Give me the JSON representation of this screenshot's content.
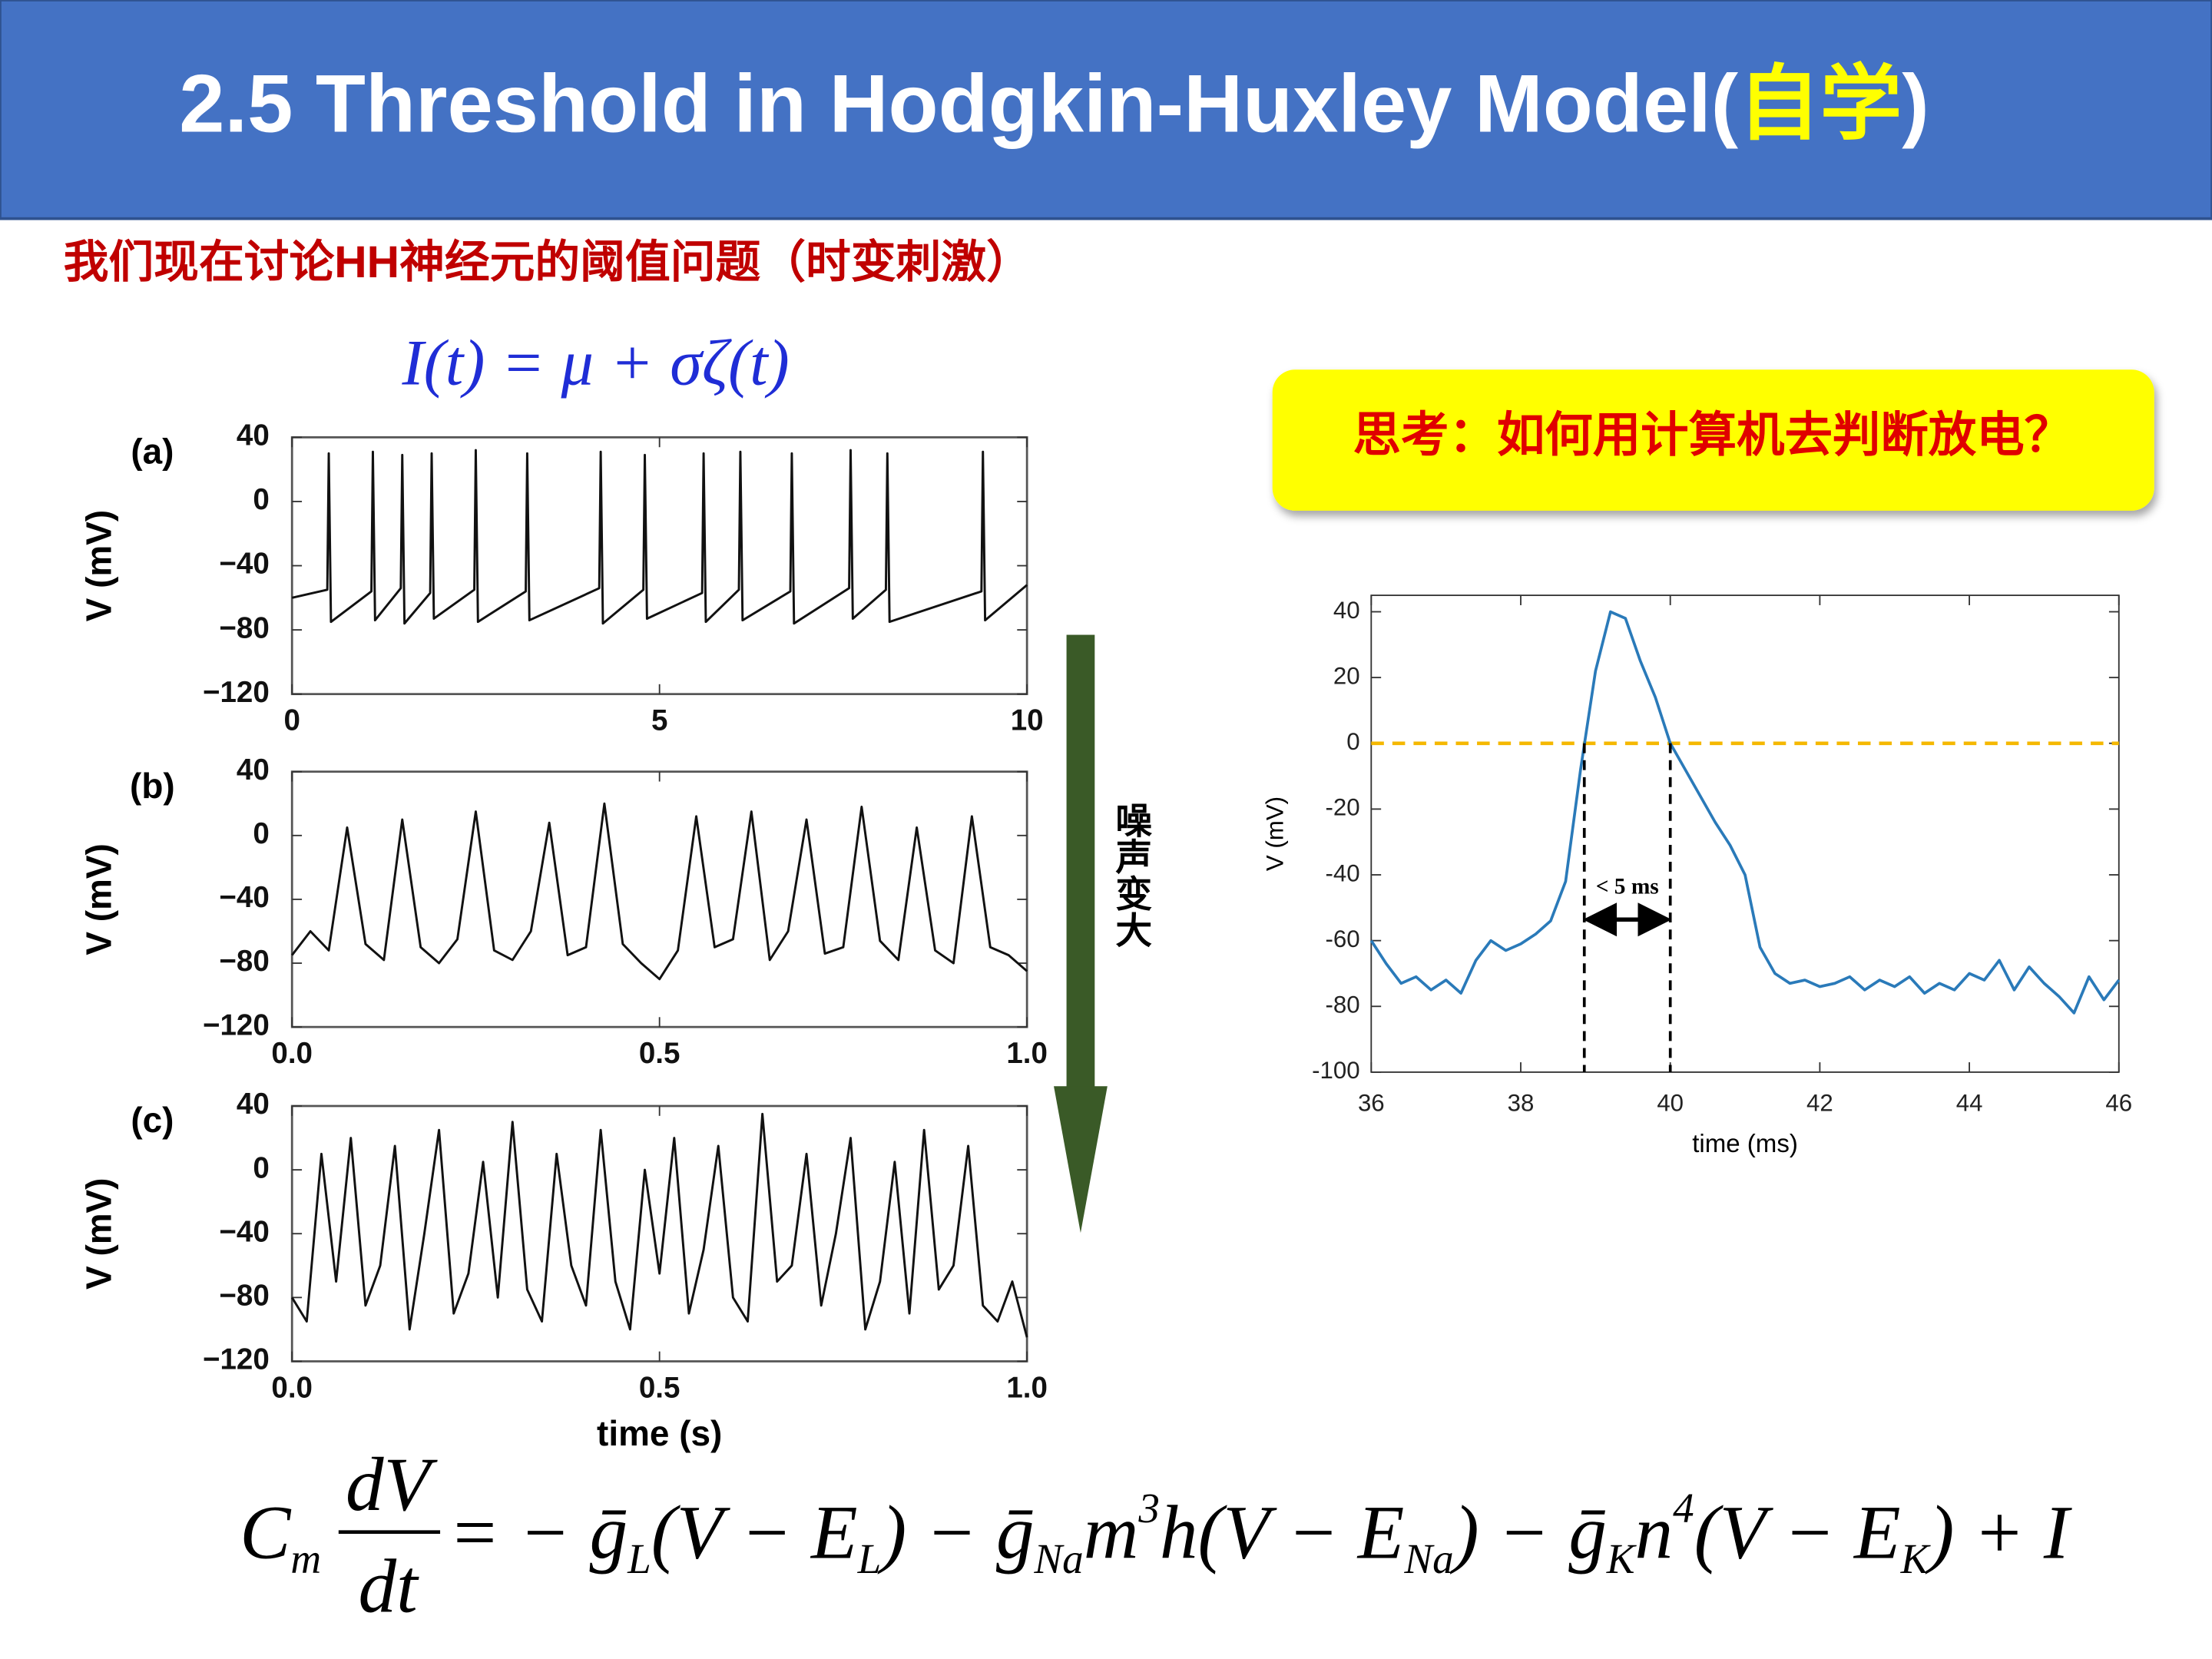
{
  "header": {
    "title": "2.5 Threshold in Hodgkin-Huxley Model(",
    "title_highlight": "自学",
    "title_end": ")"
  },
  "subtitle": "我们现在讨论HH神经元的阈值问题（时变刺激）",
  "input_formula": "I(t) = μ + σζ(t)",
  "callout": "思考：如何用计算机去判断放电？",
  "arrow_label": "噪声变大",
  "equation": {
    "lhs": {
      "text": "C",
      "sub": "m"
    },
    "numerator": "dV",
    "denominator": "dt",
    "rhs": [
      {
        "text": "= − ḡ",
        "sub": "L"
      },
      {
        "text": "(V − E",
        "sub": "L"
      },
      {
        "text": ") − ḡ",
        "sub": "Na"
      },
      {
        "text": "m",
        "sup": "3"
      },
      {
        "text": "h(V − E",
        "sub": "Na"
      },
      {
        "text": ") − ḡ",
        "sub": "K"
      },
      {
        "text": "n",
        "sup": "4"
      },
      {
        "text": "(V − E",
        "sub": "K"
      },
      {
        "text": ") + I"
      }
    ]
  },
  "chart_data": [
    {
      "type": "line",
      "panel_label": "(a)",
      "y_label": "V (mV)",
      "color": "#111111",
      "x": [
        0,
        0.48,
        0.5,
        0.53,
        1.08,
        1.1,
        1.13,
        1.48,
        1.5,
        1.53,
        1.88,
        1.9,
        1.93,
        2.48,
        2.5,
        2.53,
        3.18,
        3.2,
        3.23,
        4.18,
        4.2,
        4.23,
        4.78,
        4.8,
        4.83,
        5.58,
        5.6,
        5.63,
        6.08,
        6.1,
        6.13,
        6.78,
        6.8,
        6.83,
        7.58,
        7.6,
        7.63,
        8.08,
        8.1,
        8.13,
        9.38,
        9.4,
        9.43,
        10
      ],
      "values": [
        -60,
        -55,
        30,
        -75,
        -56,
        31,
        -74,
        -54,
        29,
        -76,
        -57,
        30,
        -73,
        -55,
        32,
        -75,
        -56,
        30,
        -74,
        -54,
        31,
        -76,
        -55,
        29,
        -73,
        -57,
        30,
        -75,
        -55,
        31,
        -74,
        -56,
        30,
        -76,
        -54,
        32,
        -73,
        -55,
        30,
        -75,
        -56,
        31,
        -74,
        -52
      ],
      "xlim": [
        0,
        10
      ],
      "xticks": [
        0,
        5,
        10
      ],
      "ylim": [
        -120,
        40
      ],
      "yticks": [
        40,
        0,
        {
          "value": -40,
          "label": "−40"
        },
        {
          "value": -80,
          "label": "−80"
        },
        {
          "value": -120,
          "label": "−120"
        }
      ]
    },
    {
      "type": "line",
      "panel_label": "(b)",
      "y_label": "V (mV)",
      "color": "#111111",
      "x": [
        0,
        0.025,
        0.05,
        0.075,
        0.1,
        0.125,
        0.15,
        0.175,
        0.2,
        0.225,
        0.25,
        0.275,
        0.3,
        0.325,
        0.35,
        0.375,
        0.4,
        0.425,
        0.45,
        0.475,
        0.5,
        0.525,
        0.55,
        0.575,
        0.6,
        0.625,
        0.65,
        0.675,
        0.7,
        0.725,
        0.75,
        0.775,
        0.8,
        0.825,
        0.85,
        0.875,
        0.9,
        0.925,
        0.95,
        0.975,
        1
      ],
      "values": [
        -75,
        -60,
        -72,
        5,
        -68,
        -78,
        10,
        -70,
        -80,
        -65,
        15,
        -72,
        -78,
        -60,
        8,
        -75,
        -70,
        20,
        -68,
        -80,
        -90,
        -72,
        12,
        -70,
        -65,
        15,
        -78,
        -60,
        10,
        -74,
        -70,
        18,
        -66,
        -78,
        5,
        -72,
        -80,
        12,
        -70,
        -75,
        -85
      ],
      "xlim": [
        0,
        1
      ],
      "xticks": [
        {
          "value": 0,
          "label": "0.0"
        },
        0.5,
        {
          "value": 1,
          "label": "1.0"
        }
      ],
      "ylim": [
        -120,
        40
      ],
      "yticks": [
        40,
        0,
        {
          "value": -40,
          "label": "−40"
        },
        {
          "value": -80,
          "label": "−80"
        },
        {
          "value": -120,
          "label": "−120"
        }
      ]
    },
    {
      "type": "line",
      "panel_label": "(c)",
      "y_label": "V (mV)",
      "x_label": "time (s)",
      "color": "#111111",
      "x": [
        0,
        0.02,
        0.04,
        0.06,
        0.08,
        0.1,
        0.12,
        0.14,
        0.16,
        0.18,
        0.2,
        0.22,
        0.24,
        0.26,
        0.28,
        0.3,
        0.32,
        0.34,
        0.36,
        0.38,
        0.4,
        0.42,
        0.44,
        0.46,
        0.48,
        0.5,
        0.52,
        0.54,
        0.56,
        0.58,
        0.6,
        0.62,
        0.64,
        0.66,
        0.68,
        0.7,
        0.72,
        0.74,
        0.76,
        0.78,
        0.8,
        0.82,
        0.84,
        0.86,
        0.88,
        0.9,
        0.92,
        0.94,
        0.96,
        0.98,
        1
      ],
      "values": [
        -80,
        -95,
        10,
        -70,
        20,
        -85,
        -60,
        15,
        -100,
        -40,
        25,
        -90,
        -65,
        5,
        -80,
        30,
        -75,
        -95,
        10,
        -60,
        -85,
        25,
        -70,
        -100,
        0,
        -65,
        20,
        -90,
        -50,
        15,
        -80,
        -95,
        35,
        -70,
        -60,
        10,
        -85,
        -40,
        20,
        -100,
        -70,
        5,
        -90,
        25,
        -75,
        -60,
        15,
        -85,
        -95,
        -70,
        -105
      ],
      "xlim": [
        0,
        1
      ],
      "xticks": [
        {
          "value": 0,
          "label": "0.0"
        },
        0.5,
        {
          "value": 1,
          "label": "1.0"
        }
      ],
      "ylim": [
        -120,
        40
      ],
      "yticks": [
        40,
        0,
        {
          "value": -40,
          "label": "−40"
        },
        {
          "value": -80,
          "label": "−80"
        },
        {
          "value": -120,
          "label": "−120"
        }
      ]
    },
    {
      "type": "line",
      "y_label": "V (mV)",
      "x_label": "time (ms)",
      "color": "#2a7ab9",
      "x": [
        36,
        36.2,
        36.4,
        36.6,
        36.8,
        37,
        37.2,
        37.4,
        37.6,
        37.8,
        38,
        38.2,
        38.4,
        38.6,
        38.8,
        39,
        39.2,
        39.4,
        39.6,
        39.8,
        40,
        40.2,
        40.4,
        40.6,
        40.8,
        41,
        41.2,
        41.4,
        41.6,
        41.8,
        42,
        42.2,
        42.4,
        42.6,
        42.8,
        43,
        43.2,
        43.4,
        43.6,
        43.8,
        44,
        44.2,
        44.4,
        44.6,
        44.8,
        45,
        45.2,
        45.4,
        45.6,
        45.8,
        46
      ],
      "values": [
        -60,
        -67,
        -73,
        -71,
        -75,
        -72,
        -76,
        -66,
        -60,
        -63,
        -61,
        -58,
        -54,
        -42,
        -8,
        22,
        40,
        38,
        25,
        14,
        0,
        -8,
        -16,
        -24,
        -31,
        -40,
        -62,
        -70,
        -73,
        -72,
        -74,
        -73,
        -71,
        -75,
        -72,
        -74,
        -71,
        -76,
        -73,
        -75,
        -70,
        -72,
        -66,
        -75,
        -68,
        -73,
        -77,
        -82,
        -71,
        -78,
        -72
      ],
      "xlim": [
        36,
        46
      ],
      "xticks": [
        36,
        38,
        40,
        42,
        44,
        46
      ],
      "ylim": [
        -100,
        45
      ],
      "yticks": [
        40,
        20,
        0,
        -20,
        -40,
        -60,
        -80,
        -100
      ],
      "threshold": 0,
      "threshold_color": "#f5b800",
      "interval_marks": [
        38.85,
        40
      ],
      "annotation": "< 5 ms"
    }
  ]
}
